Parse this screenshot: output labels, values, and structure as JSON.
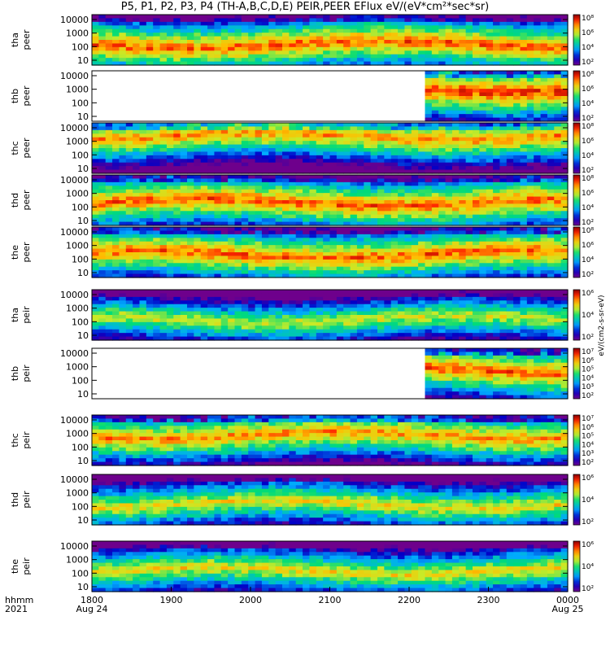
{
  "figure": {
    "title": "P5, P1, P2, P3, P4 (TH-A,B,C,D,E) PEIR,PEER EFlux eV/(eV*cm²*sec*sr)",
    "time_axis_label_line1": "hhmm",
    "time_axis_label_line2": "2021",
    "colorbar_unit_label": "eV/(cm2-s-sr-eV)"
  },
  "chart_data": {
    "type": "heatmap",
    "x_ticks": [
      {
        "value": "1800",
        "date": "Aug 24"
      },
      {
        "value": "1900",
        "date": ""
      },
      {
        "value": "2000",
        "date": ""
      },
      {
        "value": "2100",
        "date": ""
      },
      {
        "value": "2200",
        "date": ""
      },
      {
        "value": "2300",
        "date": ""
      },
      {
        "value": "0000",
        "date": "Aug 25"
      }
    ],
    "x_range": [
      "1800",
      "0000"
    ],
    "y_scale": "log",
    "y_ticks": [
      "10",
      "100",
      "1000",
      "10000"
    ],
    "panels": [
      {
        "probe": "tha",
        "type": "peer",
        "colorbar_ticks": [
          "10²",
          "10⁴",
          "10⁶",
          "10⁸"
        ],
        "data_start_frac": 0.0,
        "hot": 0.85,
        "band": 0.6
      },
      {
        "probe": "thb",
        "type": "peer",
        "colorbar_ticks": [
          "10²",
          "10⁴",
          "10⁶",
          "10⁸"
        ],
        "data_start_frac": 0.705,
        "hot": 0.9,
        "band": 0.35
      },
      {
        "probe": "thc",
        "type": "peer",
        "colorbar_ticks": [
          "10²",
          "10⁴",
          "10⁶",
          "10⁸"
        ],
        "data_start_frac": 0.0,
        "hot": 0.8,
        "band": 0.25
      },
      {
        "probe": "thd",
        "type": "peer",
        "colorbar_ticks": [
          "10²",
          "10⁴",
          "10⁶",
          "10⁸"
        ],
        "data_start_frac": 0.0,
        "hot": 0.85,
        "band": 0.55
      },
      {
        "probe": "the",
        "type": "peer",
        "colorbar_ticks": [
          "10²",
          "10⁴",
          "10⁶",
          "10⁸"
        ],
        "data_start_frac": 0.0,
        "hot": 0.85,
        "band": 0.55
      },
      {
        "probe": "tha",
        "type": "peir",
        "colorbar_ticks": [
          "10²",
          "10⁴",
          "10⁶"
        ],
        "data_start_frac": 0.0,
        "hot": 0.65,
        "band": 0.6
      },
      {
        "probe": "thb",
        "type": "peir",
        "colorbar_ticks": [
          "10²",
          "10³",
          "10⁴",
          "10⁵",
          "10⁶",
          "10⁷"
        ],
        "data_start_frac": 0.705,
        "hot": 0.85,
        "band": 0.45
      },
      {
        "probe": "thc",
        "type": "peir",
        "colorbar_ticks": [
          "10²",
          "10³",
          "10⁴",
          "10⁵",
          "10⁶",
          "10⁷"
        ],
        "data_start_frac": 0.0,
        "hot": 0.8,
        "band": 0.4
      },
      {
        "probe": "thd",
        "type": "peir",
        "colorbar_ticks": [
          "10²",
          "10⁴",
          "10⁶"
        ],
        "data_start_frac": 0.0,
        "hot": 0.7,
        "band": 0.6
      },
      {
        "probe": "the",
        "type": "peir",
        "colorbar_ticks": [
          "10²",
          "10⁴",
          "10⁶"
        ],
        "data_start_frac": 0.0,
        "hot": 0.7,
        "band": 0.6
      }
    ]
  }
}
